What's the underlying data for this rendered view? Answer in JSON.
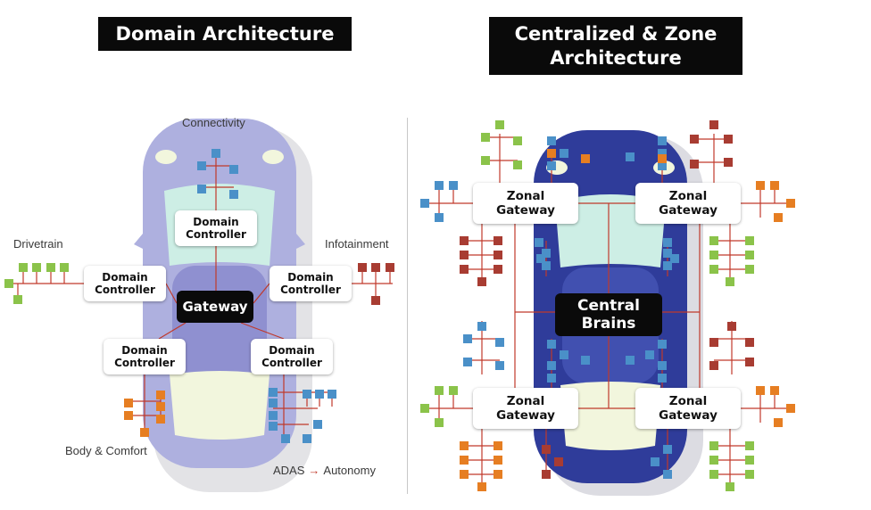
{
  "colors": {
    "line_red": "#c0392b",
    "node_green": "#8bc34a",
    "node_blue": "#4a90c8",
    "node_orange": "#e67e22",
    "node_darkred": "#a83c32",
    "car_left_body": "#aeb0df",
    "car_right_body": "#2f3c9a",
    "glass": "#cdeee5",
    "roof": "#f2f6dd"
  },
  "left": {
    "title": "Domain Architecture",
    "gateway": "Gateway",
    "controller_line1": "Domain",
    "controller_line2": "Controller",
    "labels": {
      "connectivity": "Connectivity",
      "drivetrain": "Drivetrain",
      "infotainment": "Infotainment",
      "body_comfort": "Body & Comfort",
      "adas": "ADAS",
      "arrow": "→",
      "autonomy": "Autonomy"
    }
  },
  "right": {
    "title_line1": "Centralized & Zone",
    "title_line2": "Architecture",
    "zonal_line1": "Zonal",
    "zonal_line2": "Gateway",
    "central_line1": "Central",
    "central_line2": "Brains"
  }
}
